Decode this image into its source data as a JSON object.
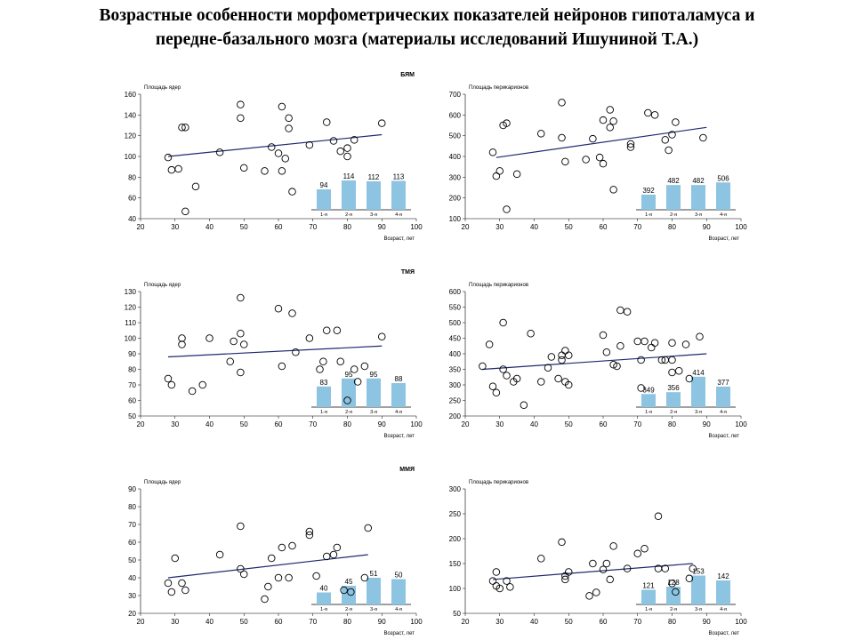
{
  "page": {
    "title_line1": "Возрастные особенности морфометрических показателей нейронов гипоталамуса и",
    "title_line2": "передне-базального мозга (материалы исследований Ишуниной Т.А.)"
  },
  "colors": {
    "bar_fill": "#8cc4e2",
    "line": "#1f2a6e",
    "marker_edge": "#000000"
  },
  "chart_data": [
    {
      "type": "scatter",
      "section_label": "БЯМ",
      "ylabel": "Площадь ядер",
      "xlabel": "Возраст, лет",
      "xlim": [
        20,
        100
      ],
      "ylim": [
        40,
        160
      ],
      "xticks": [
        20,
        30,
        40,
        50,
        60,
        70,
        80,
        90,
        100
      ],
      "yticks": [
        40,
        60,
        80,
        100,
        120,
        140,
        160
      ],
      "points": [
        [
          28,
          99
        ],
        [
          29,
          87
        ],
        [
          31,
          88
        ],
        [
          32,
          128
        ],
        [
          33,
          128
        ],
        [
          33,
          47
        ],
        [
          36,
          71
        ],
        [
          43,
          104
        ],
        [
          49,
          150
        ],
        [
          49,
          137
        ],
        [
          50,
          89
        ],
        [
          56,
          86
        ],
        [
          58,
          109
        ],
        [
          60,
          103
        ],
        [
          61,
          148
        ],
        [
          61,
          86
        ],
        [
          62,
          98
        ],
        [
          63,
          137
        ],
        [
          63,
          127
        ],
        [
          64,
          66
        ],
        [
          69,
          111
        ],
        [
          74,
          133
        ],
        [
          76,
          115
        ],
        [
          78,
          105
        ],
        [
          80,
          100
        ],
        [
          80,
          108
        ],
        [
          82,
          116
        ],
        [
          90,
          132
        ]
      ],
      "trend": [
        [
          28,
          100
        ],
        [
          90,
          121
        ]
      ],
      "bars": {
        "categories": [
          "1-я",
          "2-я",
          "3-я",
          "4-я"
        ],
        "values": [
          94,
          114,
          112,
          113
        ],
        "ylim": [
          60,
          120
        ]
      }
    },
    {
      "type": "scatter",
      "section_label": "",
      "ylabel": "Площадь перикарионов",
      "xlabel": "Возраст, лет",
      "xlim": [
        20,
        100
      ],
      "ylim": [
        100,
        700
      ],
      "xticks": [
        20,
        30,
        40,
        50,
        60,
        70,
        80,
        90,
        100
      ],
      "yticks": [
        100,
        200,
        300,
        400,
        500,
        600,
        700
      ],
      "points": [
        [
          28,
          420
        ],
        [
          29,
          305
        ],
        [
          30,
          330
        ],
        [
          31,
          550
        ],
        [
          32,
          560
        ],
        [
          32,
          145
        ],
        [
          35,
          315
        ],
        [
          42,
          510
        ],
        [
          48,
          660
        ],
        [
          48,
          490
        ],
        [
          49,
          375
        ],
        [
          55,
          385
        ],
        [
          57,
          485
        ],
        [
          59,
          395
        ],
        [
          60,
          575
        ],
        [
          60,
          365
        ],
        [
          62,
          540
        ],
        [
          62,
          625
        ],
        [
          63,
          570
        ],
        [
          63,
          240
        ],
        [
          68,
          445
        ],
        [
          68,
          460
        ],
        [
          73,
          610
        ],
        [
          75,
          600
        ],
        [
          78,
          480
        ],
        [
          79,
          430
        ],
        [
          80,
          505
        ],
        [
          81,
          565
        ],
        [
          89,
          490
        ]
      ],
      "trend": [
        [
          29,
          395
        ],
        [
          90,
          540
        ]
      ],
      "bars": {
        "categories": [
          "1-я",
          "2-я",
          "3-я",
          "4-я"
        ],
        "values": [
          392,
          482,
          482,
          506
        ],
        "ylim": [
          300,
          550
        ]
      }
    },
    {
      "type": "scatter",
      "section_label": "ТМЯ",
      "ylabel": "Площадь ядер",
      "xlabel": "Возраст, лет",
      "xlim": [
        20,
        100
      ],
      "ylim": [
        50,
        130
      ],
      "xticks": [
        20,
        30,
        40,
        50,
        60,
        70,
        80,
        90,
        100
      ],
      "yticks": [
        50,
        60,
        70,
        80,
        90,
        100,
        110,
        120,
        130
      ],
      "points": [
        [
          28,
          74
        ],
        [
          29,
          70
        ],
        [
          32,
          100
        ],
        [
          32,
          96
        ],
        [
          35,
          66
        ],
        [
          38,
          70
        ],
        [
          40,
          100
        ],
        [
          46,
          85
        ],
        [
          47,
          98
        ],
        [
          49,
          78
        ],
        [
          49,
          103
        ],
        [
          49,
          126
        ],
        [
          50,
          96
        ],
        [
          60,
          119
        ],
        [
          61,
          82
        ],
        [
          64,
          116
        ],
        [
          65,
          91
        ],
        [
          69,
          100
        ],
        [
          72,
          80
        ],
        [
          73,
          85
        ],
        [
          74,
          105
        ],
        [
          77,
          105
        ],
        [
          78,
          85
        ],
        [
          80,
          60
        ],
        [
          82,
          80
        ],
        [
          83,
          72
        ],
        [
          85,
          82
        ],
        [
          90,
          101
        ]
      ],
      "trend": [
        [
          28,
          88
        ],
        [
          90,
          95
        ]
      ],
      "bars": {
        "categories": [
          "1-я",
          "2-я",
          "3-я",
          "4-я"
        ],
        "values": [
          83,
          95,
          95,
          88
        ],
        "ylim": [
          60,
          100
        ]
      }
    },
    {
      "type": "scatter",
      "section_label": "",
      "ylabel": "Площадь перикарионов",
      "xlabel": "Возраст, лет",
      "xlim": [
        20,
        100
      ],
      "ylim": [
        200,
        600
      ],
      "xticks": [
        20,
        30,
        40,
        50,
        60,
        70,
        80,
        90,
        100
      ],
      "yticks": [
        200,
        250,
        300,
        350,
        400,
        450,
        500,
        550,
        600
      ],
      "points": [
        [
          25,
          360
        ],
        [
          27,
          430
        ],
        [
          28,
          295
        ],
        [
          29,
          275
        ],
        [
          31,
          500
        ],
        [
          31,
          350
        ],
        [
          32,
          330
        ],
        [
          34,
          310
        ],
        [
          35,
          320
        ],
        [
          37,
          235
        ],
        [
          39,
          465
        ],
        [
          42,
          310
        ],
        [
          44,
          355
        ],
        [
          45,
          390
        ],
        [
          47,
          320
        ],
        [
          48,
          395
        ],
        [
          48,
          380
        ],
        [
          49,
          410
        ],
        [
          49,
          310
        ],
        [
          50,
          395
        ],
        [
          50,
          300
        ],
        [
          60,
          460
        ],
        [
          61,
          405
        ],
        [
          63,
          365
        ],
        [
          64,
          360
        ],
        [
          65,
          540
        ],
        [
          65,
          425
        ],
        [
          67,
          535
        ],
        [
          70,
          440
        ],
        [
          71,
          380
        ],
        [
          71,
          290
        ],
        [
          72,
          440
        ],
        [
          74,
          420
        ],
        [
          75,
          435
        ],
        [
          77,
          380
        ],
        [
          78,
          380
        ],
        [
          80,
          340
        ],
        [
          80,
          380
        ],
        [
          80,
          435
        ],
        [
          82,
          345
        ],
        [
          84,
          430
        ],
        [
          85,
          320
        ],
        [
          88,
          455
        ]
      ],
      "trend": [
        [
          25,
          350
        ],
        [
          90,
          400
        ]
      ],
      "bars": {
        "categories": [
          "1-я",
          "2-я",
          "3-я",
          "4-я"
        ],
        "values": [
          349,
          356,
          414,
          377
        ],
        "ylim": [
          320,
          420
        ]
      }
    },
    {
      "type": "scatter",
      "section_label": "ММЯ",
      "ylabel": "Площадь ядер",
      "xlabel": "Возраст, лет",
      "xlim": [
        20,
        100
      ],
      "ylim": [
        20,
        90
      ],
      "xticks": [
        20,
        30,
        40,
        50,
        60,
        70,
        80,
        90,
        100
      ],
      "yticks": [
        20,
        30,
        40,
        50,
        60,
        70,
        80,
        90
      ],
      "points": [
        [
          28,
          37
        ],
        [
          29,
          32
        ],
        [
          30,
          51
        ],
        [
          32,
          37
        ],
        [
          33,
          33
        ],
        [
          43,
          53
        ],
        [
          49,
          69
        ],
        [
          49,
          45
        ],
        [
          50,
          42
        ],
        [
          56,
          28
        ],
        [
          57,
          35
        ],
        [
          58,
          51
        ],
        [
          60,
          40
        ],
        [
          61,
          57
        ],
        [
          63,
          40
        ],
        [
          64,
          58
        ],
        [
          69,
          66
        ],
        [
          69,
          64
        ],
        [
          71,
          41
        ],
        [
          74,
          52
        ],
        [
          76,
          53
        ],
        [
          77,
          57
        ],
        [
          79,
          33
        ],
        [
          81,
          32
        ],
        [
          85,
          40
        ],
        [
          86,
          68
        ]
      ],
      "trend": [
        [
          28,
          40
        ],
        [
          86,
          53
        ]
      ],
      "bars": {
        "categories": [
          "1-я",
          "2-я",
          "3-я",
          "4-я"
        ],
        "values": [
          40,
          45,
          51,
          50
        ],
        "ylim": [
          35,
          55
        ]
      }
    },
    {
      "type": "scatter",
      "section_label": "",
      "ylabel": "Площадь перикарионов",
      "xlabel": "Возраст, лет",
      "xlim": [
        20,
        100
      ],
      "ylim": [
        50,
        300
      ],
      "xticks": [
        20,
        30,
        40,
        50,
        60,
        70,
        80,
        90,
        100
      ],
      "yticks": [
        50,
        100,
        150,
        200,
        250,
        300
      ],
      "points": [
        [
          28,
          115
        ],
        [
          29,
          105
        ],
        [
          29,
          133
        ],
        [
          30,
          100
        ],
        [
          32,
          115
        ],
        [
          33,
          103
        ],
        [
          42,
          160
        ],
        [
          48,
          193
        ],
        [
          49,
          125
        ],
        [
          49,
          118
        ],
        [
          50,
          133
        ],
        [
          56,
          85
        ],
        [
          57,
          150
        ],
        [
          58,
          92
        ],
        [
          60,
          138
        ],
        [
          61,
          150
        ],
        [
          62,
          118
        ],
        [
          63,
          185
        ],
        [
          67,
          140
        ],
        [
          70,
          170
        ],
        [
          72,
          180
        ],
        [
          76,
          245
        ],
        [
          76,
          140
        ],
        [
          78,
          140
        ],
        [
          80,
          110
        ],
        [
          81,
          93
        ],
        [
          85,
          120
        ],
        [
          86,
          140
        ]
      ],
      "trend": [
        [
          28,
          118
        ],
        [
          86,
          150
        ]
      ],
      "bars": {
        "categories": [
          "1-я",
          "2-я",
          "3-я",
          "4-я"
        ],
        "values": [
          121,
          128,
          153,
          142
        ],
        "ylim": [
          100,
          160
        ]
      }
    }
  ]
}
